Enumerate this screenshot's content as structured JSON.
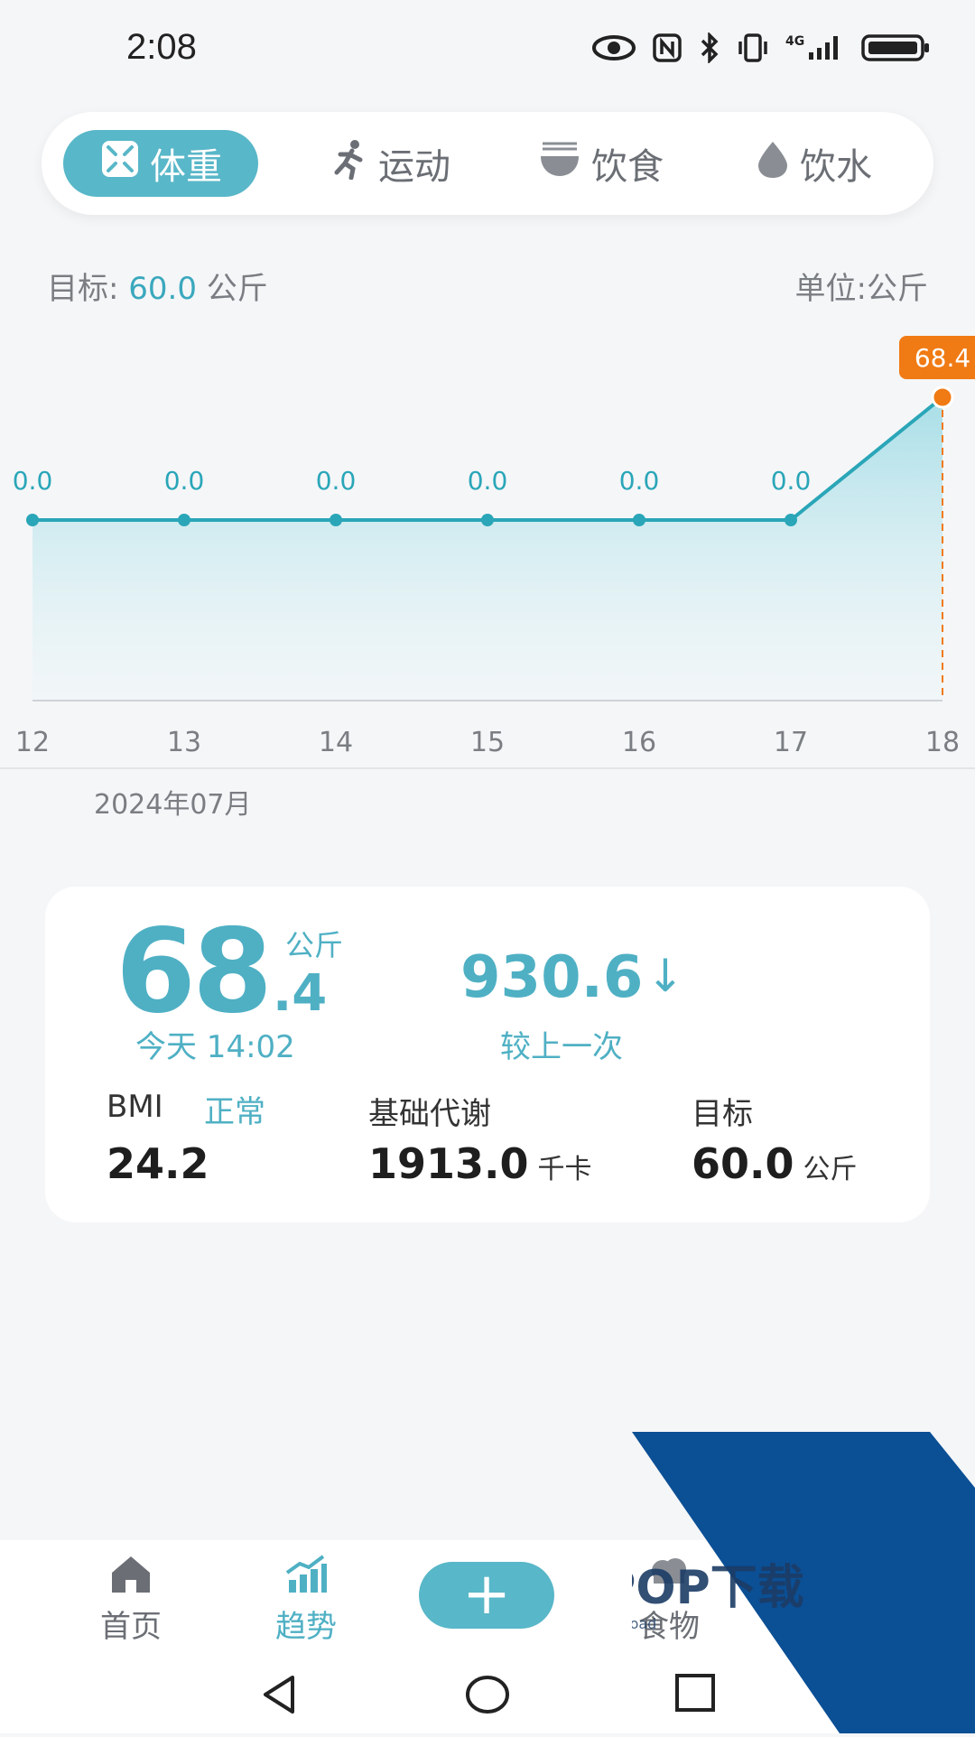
{
  "status_bar": {
    "time": "2:08",
    "icons": [
      "eye-icon",
      "nfc-icon",
      "bluetooth-icon",
      "vibrate-icon",
      "4g-signal-icon",
      "battery-icon"
    ]
  },
  "segments": [
    {
      "label": "体重",
      "icon": "scale-icon",
      "active": true
    },
    {
      "label": "运动",
      "icon": "run-icon",
      "active": false
    },
    {
      "label": "饮食",
      "icon": "bowl-icon",
      "active": false
    },
    {
      "label": "饮水",
      "icon": "drop-icon",
      "active": false
    }
  ],
  "goal": {
    "prefix": "目标:",
    "value": "60.0",
    "unit": "公斤"
  },
  "unit_label": "单位:公斤",
  "chart_data": {
    "type": "line",
    "categories": [
      "12",
      "13",
      "14",
      "15",
      "16",
      "17",
      "18"
    ],
    "values": [
      0.0,
      0.0,
      0.0,
      0.0,
      0.0,
      0.0,
      68.4
    ],
    "labels": [
      "0.0",
      "0.0",
      "0.0",
      "0.0",
      "0.0",
      "0.0",
      "68.4"
    ],
    "ylim": [
      0,
      68.4
    ],
    "grid": false,
    "line_color": "#2aa6b8",
    "highlight_color": "#f07a14"
  },
  "month": "2024年07月",
  "summary": {
    "weight_int": "68",
    "weight_dec": ".4",
    "weight_unit": "公斤",
    "time": "今天 14:02",
    "delta": "930.6",
    "delta_arrow": "↓",
    "delta_label": "较上一次",
    "bmi_label": "BMI",
    "bmi_status": "正常",
    "bmi_value": "24.2",
    "bmr_label": "基础代谢",
    "bmr_value": "1913.0",
    "bmr_unit": "千卡",
    "target_label": "目标",
    "target_value": "60.0",
    "target_unit": "公斤"
  },
  "bottom_nav": {
    "home": "首页",
    "trend": "趋势",
    "add": "+",
    "food": "食物"
  },
  "watermark": {
    "text": "PCPOP下载",
    "sub": "PCPOP Download"
  }
}
